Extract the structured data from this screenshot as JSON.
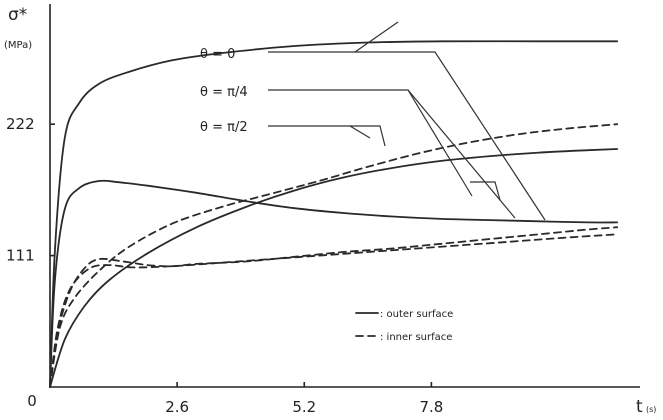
{
  "chart_data": {
    "type": "line",
    "ylabel": "σ*",
    "yunit": "(MPa)",
    "xlabel": "t",
    "xunit": "(s)",
    "xlim": [
      0,
      11.8
    ],
    "ylim": [
      0,
      310
    ],
    "x_ticks": [
      {
        "value": 0,
        "label": "0"
      },
      {
        "value": 2.6,
        "label": "2.6"
      },
      {
        "value": 5.2,
        "label": "5.2"
      },
      {
        "value": 7.8,
        "label": "7.8"
      }
    ],
    "y_ticks": [
      {
        "value": 111,
        "label": "111"
      },
      {
        "value": 222,
        "label": "222"
      }
    ],
    "series": [
      {
        "group": "θ = 0",
        "surface": "outer",
        "style": "solid",
        "x": [
          0,
          0.1,
          0.3,
          0.6,
          1.0,
          1.6,
          2.5,
          3.5,
          5.0,
          6.5,
          8.0,
          10.0,
          11.6
        ],
        "y": [
          0,
          115,
          210,
          240,
          256,
          266,
          276,
          282,
          288,
          291,
          292,
          292,
          292
        ]
      },
      {
        "group": "θ = 0",
        "surface": "inner",
        "style": "dashed",
        "x": [
          0,
          0.2,
          0.5,
          1.0,
          1.6,
          2.5,
          3.5,
          4.5,
          5.5,
          6.5,
          7.5,
          8.5,
          9.5,
          10.5,
          11.6
        ],
        "y": [
          0,
          50,
          75,
          98,
          118,
          138,
          152,
          163,
          174,
          186,
          197,
          206,
          213,
          218,
          222
        ]
      },
      {
        "group": "θ = π/4",
        "surface": "outer",
        "style": "solid",
        "x": [
          0,
          0.1,
          0.3,
          0.6,
          1.0,
          1.4,
          2.0,
          3.0,
          4.0,
          5.0,
          6.0,
          7.0,
          8.0,
          9.0,
          10.0,
          11.0,
          11.6
        ],
        "y": [
          0,
          90,
          150,
          168,
          174,
          173,
          170,
          164,
          157,
          151,
          147,
          144,
          142,
          141,
          140,
          139,
          139
        ]
      },
      {
        "group": "θ = π/4",
        "surface": "inner",
        "style": "dashed",
        "x": [
          0,
          0.15,
          0.4,
          0.7,
          1.0,
          1.5,
          2.0,
          2.5,
          3.0,
          4.0,
          5.0,
          6.0,
          7.0,
          8.0,
          9.0,
          10.0,
          11.0,
          11.6
        ],
        "y": [
          0,
          45,
          80,
          100,
          108,
          106,
          103,
          102,
          104,
          106,
          110,
          114,
          117,
          121,
          125,
          129,
          133,
          135
        ]
      },
      {
        "group": "θ = π/2",
        "surface": "outer",
        "style": "solid",
        "x": [
          0,
          0.3,
          0.7,
          1.2,
          2.0,
          3.0,
          4.0,
          5.0,
          6.0,
          7.0,
          8.0,
          9.0,
          10.0,
          11.0,
          11.6
        ],
        "y": [
          0,
          40,
          68,
          90,
          113,
          135,
          152,
          166,
          177,
          185,
          191,
          195,
          198,
          200,
          201
        ]
      },
      {
        "group": "θ = π/2",
        "surface": "inner",
        "style": "dashed",
        "x": [
          0,
          0.15,
          0.4,
          0.8,
          1.2,
          1.7,
          2.5,
          3.5,
          4.5,
          5.5,
          6.5,
          7.5,
          8.5,
          9.5,
          10.5,
          11.6
        ],
        "y": [
          0,
          48,
          82,
          100,
          103,
          101,
          102,
          105,
          108,
          111,
          114,
          117,
          120,
          123,
          126,
          129
        ]
      }
    ],
    "annotations": [
      {
        "text": "θ = 0"
      },
      {
        "text": "θ = π/4"
      },
      {
        "text": "θ = π/2"
      }
    ],
    "legend": {
      "placement": "bottom-right",
      "entries": [
        {
          "style": "solid",
          "label": ": outer surface"
        },
        {
          "style": "dashed",
          "label": ": inner surface"
        }
      ]
    },
    "grid": false
  }
}
